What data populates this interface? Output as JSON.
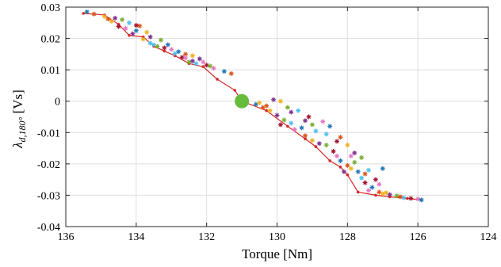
{
  "chart_data": {
    "type": "scatter",
    "title": "",
    "xlabel": "Torque [Nm]",
    "ylabel_main": "λ",
    "ylabel_sub": "d,180°",
    "ylabel_unit": " [Vs]",
    "xlim": [
      136,
      124
    ],
    "x_reversed": true,
    "ylim": [
      -0.04,
      0.03
    ],
    "grid": true,
    "x_ticks": [
      136,
      134,
      132,
      130,
      128,
      126,
      124
    ],
    "y_ticks": [
      -0.04,
      -0.03,
      -0.02,
      -0.01,
      0,
      0.01,
      0.02,
      0.03
    ],
    "y_tick_labels": [
      "-0.04",
      "-0.03",
      "-0.02",
      "-0.01",
      "0",
      "0.01",
      "0.02",
      "0.03"
    ],
    "marker_colors": [
      "#1f77b4",
      "#d95319",
      "#edb120",
      "#7e2f8e",
      "#77ac30",
      "#4dbeee",
      "#a2142f",
      "#e377c2"
    ],
    "line_series": {
      "color": "#d62728",
      "points": [
        [
          135.5,
          0.028
        ],
        [
          134.9,
          0.0275
        ],
        [
          134.5,
          0.0245
        ],
        [
          134.2,
          0.021
        ],
        [
          133.8,
          0.0205
        ],
        [
          133.5,
          0.0175
        ],
        [
          133.2,
          0.016
        ],
        [
          132.9,
          0.0145
        ],
        [
          132.5,
          0.012
        ],
        [
          132.1,
          0.011
        ],
        [
          131.7,
          0.007
        ],
        [
          131.2,
          0.0035
        ],
        [
          131.0,
          0.0
        ],
        [
          130.3,
          -0.003
        ],
        [
          129.7,
          -0.008
        ],
        [
          129.2,
          -0.012
        ],
        [
          128.9,
          -0.0145
        ],
        [
          128.5,
          -0.019
        ],
        [
          128.2,
          -0.021
        ],
        [
          128.0,
          -0.0235
        ],
        [
          127.7,
          -0.029
        ],
        [
          127.2,
          -0.03
        ],
        [
          126.8,
          -0.0305
        ],
        [
          126.3,
          -0.031
        ],
        [
          125.9,
          -0.0315
        ]
      ]
    },
    "scatter_series": {
      "points": [
        [
          135.4,
          0.0285
        ],
        [
          135.2,
          0.0278
        ],
        [
          134.9,
          0.027
        ],
        [
          134.6,
          0.0265
        ],
        [
          134.4,
          0.026
        ],
        [
          134.2,
          0.025
        ],
        [
          134.5,
          0.0238
        ],
        [
          134.3,
          0.0232
        ],
        [
          134.0,
          0.0225
        ],
        [
          133.9,
          0.024
        ],
        [
          133.7,
          0.022
        ],
        [
          133.6,
          0.0205
        ],
        [
          133.3,
          0.0195
        ],
        [
          133.5,
          0.018
        ],
        [
          133.2,
          0.017
        ],
        [
          133.0,
          0.0165
        ],
        [
          132.8,
          0.0158
        ],
        [
          132.6,
          0.015
        ],
        [
          132.4,
          0.0145
        ],
        [
          132.2,
          0.0135
        ],
        [
          132.5,
          0.0125
        ],
        [
          132.3,
          0.012
        ],
        [
          132.0,
          0.0115
        ],
        [
          131.8,
          0.0105
        ],
        [
          131.5,
          0.0095
        ],
        [
          131.3,
          0.0088
        ],
        [
          134.7,
          0.0255
        ],
        [
          134.1,
          0.0215
        ],
        [
          133.4,
          0.0175
        ],
        [
          132.9,
          0.0152
        ],
        [
          132.7,
          0.014
        ],
        [
          132.1,
          0.0125
        ],
        [
          133.1,
          0.018
        ],
        [
          134.8,
          0.0262
        ],
        [
          133.8,
          0.0198
        ],
        [
          132.4,
          0.0128
        ],
        [
          131.9,
          0.0112
        ],
        [
          133.6,
          0.0185
        ],
        [
          134.0,
          0.0242
        ],
        [
          132.6,
          0.0138
        ],
        [
          130.6,
          -0.001
        ],
        [
          130.4,
          -0.002
        ],
        [
          130.2,
          -0.003
        ],
        [
          130.0,
          -0.0045
        ],
        [
          129.8,
          -0.006
        ],
        [
          129.6,
          -0.007
        ],
        [
          129.9,
          -0.0075
        ],
        [
          129.5,
          -0.009
        ],
        [
          129.3,
          -0.0085
        ],
        [
          129.2,
          -0.011
        ],
        [
          129.0,
          -0.0125
        ],
        [
          128.8,
          -0.0135
        ],
        [
          128.6,
          -0.014
        ],
        [
          128.9,
          -0.0095
        ],
        [
          128.4,
          -0.016
        ],
        [
          128.3,
          -0.0175
        ],
        [
          128.2,
          -0.019
        ],
        [
          128.0,
          -0.0205
        ],
        [
          127.9,
          -0.0215
        ],
        [
          128.1,
          -0.0225
        ],
        [
          127.8,
          -0.0195
        ],
        [
          127.6,
          -0.0245
        ],
        [
          127.5,
          -0.026
        ],
        [
          127.4,
          -0.0285
        ],
        [
          127.3,
          -0.0275
        ],
        [
          127.1,
          -0.029
        ],
        [
          127.0,
          -0.0295
        ],
        [
          126.8,
          -0.0298
        ],
        [
          126.6,
          -0.0302
        ],
        [
          126.4,
          -0.0308
        ],
        [
          126.2,
          -0.031
        ],
        [
          126.0,
          -0.0312
        ],
        [
          125.9,
          -0.0315
        ],
        [
          126.5,
          -0.0305
        ],
        [
          126.9,
          -0.0292
        ],
        [
          130.1,
          0.0005
        ],
        [
          129.7,
          -0.002
        ],
        [
          129.4,
          -0.003
        ],
        [
          129.1,
          -0.005
        ],
        [
          128.7,
          -0.0065
        ],
        [
          128.5,
          -0.008
        ],
        [
          128.2,
          -0.0115
        ],
        [
          128.0,
          -0.014
        ],
        [
          127.8,
          -0.0165
        ],
        [
          127.6,
          -0.018
        ],
        [
          127.4,
          -0.022
        ],
        [
          127.2,
          -0.025
        ],
        [
          127.1,
          -0.0265
        ],
        [
          127.0,
          -0.0215
        ],
        [
          130.3,
          -0.0015
        ],
        [
          129.9,
          0.0
        ],
        [
          129.6,
          -0.0035
        ],
        [
          129.0,
          -0.0075
        ],
        [
          128.6,
          -0.0105
        ],
        [
          128.3,
          -0.0128
        ],
        [
          127.9,
          -0.0175
        ],
        [
          127.7,
          -0.0225
        ],
        [
          127.5,
          -0.0232
        ],
        [
          130.5,
          -0.0005
        ],
        [
          129.2,
          -0.0062
        ]
      ]
    },
    "highlight_point": {
      "x": 131.0,
      "y": 0.0,
      "color": "#66bb3a"
    }
  }
}
